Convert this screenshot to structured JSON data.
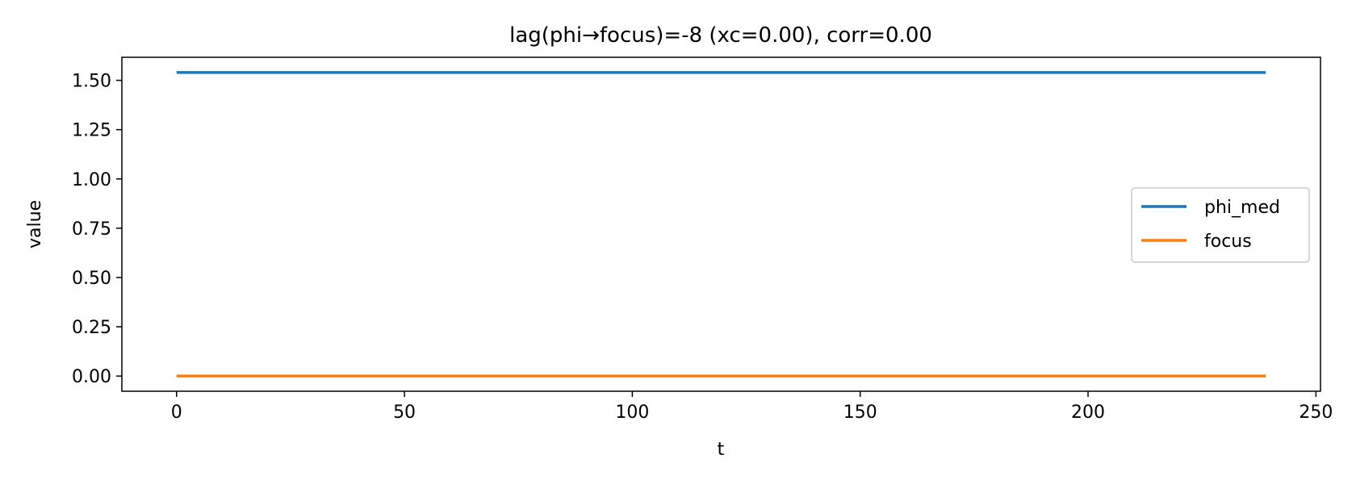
{
  "chart_data": {
    "type": "line",
    "title": "lag(phi→focus)=-8 (xc=0.00), corr=0.00",
    "xlabel": "t",
    "ylabel": "value",
    "xlim": [
      -12,
      251
    ],
    "ylim": [
      -0.077,
      1.617
    ],
    "xticks": [
      0,
      50,
      100,
      150,
      200,
      250
    ],
    "xtick_labels": [
      "0",
      "50",
      "100",
      "150",
      "200",
      "250"
    ],
    "yticks": [
      0.0,
      0.25,
      0.5,
      0.75,
      1.0,
      1.25,
      1.5
    ],
    "ytick_labels": [
      "0.00",
      "0.25",
      "0.50",
      "0.75",
      "1.00",
      "1.25",
      "1.50"
    ],
    "grid": false,
    "legend_position": "center-right",
    "series": [
      {
        "name": "phi_med",
        "color": "#1f77b4",
        "x": [
          0,
          239
        ],
        "y": [
          1.54,
          1.54
        ]
      },
      {
        "name": "focus",
        "color": "#ff7f0e",
        "x": [
          0,
          239
        ],
        "y": [
          0.0,
          0.0
        ]
      }
    ]
  }
}
